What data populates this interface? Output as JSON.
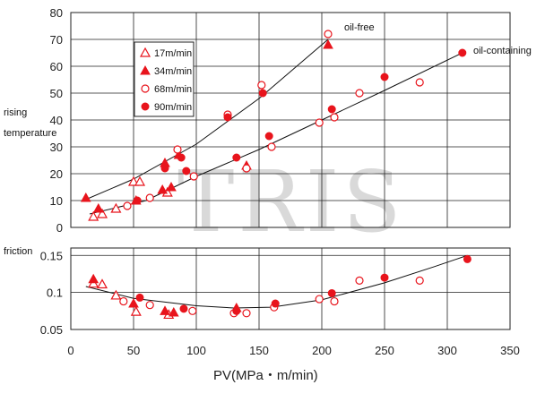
{
  "watermark": "TRIS",
  "x_title": "PV(MPa・m/min)",
  "chart_data": [
    {
      "type": "scatter",
      "ylabel_line1": "rising",
      "ylabel_line2": "temperature",
      "xlim": [
        0,
        350
      ],
      "ylim": [
        0,
        80
      ],
      "yticks": [
        "0",
        "10",
        "20",
        "30",
        "40",
        "50",
        "60",
        "70",
        "80"
      ],
      "grid": true,
      "legend_placement": "top-left",
      "curve_labels": [
        {
          "text": "oil-free"
        },
        {
          "text": "oil-containing"
        }
      ],
      "fit_lines": [
        {
          "label": "oil-free",
          "points": [
            [
              10,
              10
            ],
            [
              50,
              18
            ],
            [
              100,
              31
            ],
            [
              150,
              48
            ],
            [
              205,
              70
            ]
          ]
        },
        {
          "label": "oil-containing",
          "points": [
            [
              15,
              5
            ],
            [
              60,
              10
            ],
            [
              100,
              19
            ],
            [
              150,
              29
            ],
            [
              200,
              40
            ],
            [
              250,
              51
            ],
            [
              312,
              65
            ]
          ]
        }
      ],
      "series": [
        {
          "name": "17m/min",
          "marker": "triangle-open",
          "points": [
            [
              18,
              4
            ],
            [
              25,
              5
            ],
            [
              36,
              7
            ],
            [
              50,
              17
            ],
            [
              55,
              17
            ],
            [
              77,
              13
            ]
          ]
        },
        {
          "name": "34m/min",
          "marker": "triangle-filled",
          "points": [
            [
              12,
              11
            ],
            [
              22,
              7
            ],
            [
              52,
              10
            ],
            [
              73,
              14
            ],
            [
              80,
              15
            ],
            [
              75,
              24
            ],
            [
              86,
              27
            ],
            [
              140,
              23
            ],
            [
              205,
              68
            ]
          ]
        },
        {
          "name": "68m/min",
          "marker": "circle-open",
          "points": [
            [
              45,
              8
            ],
            [
              63,
              11
            ],
            [
              85,
              29
            ],
            [
              98,
              19
            ],
            [
              125,
              42
            ],
            [
              140,
              22
            ],
            [
              152,
              53
            ],
            [
              160,
              30
            ],
            [
              198,
              39
            ],
            [
              205,
              72
            ],
            [
              210,
              41
            ],
            [
              230,
              50
            ],
            [
              278,
              54
            ]
          ]
        },
        {
          "name": "90m/min",
          "marker": "circle-filled",
          "points": [
            [
              53,
              10
            ],
            [
              75,
              22
            ],
            [
              88,
              26
            ],
            [
              92,
              21
            ],
            [
              125,
              41
            ],
            [
              132,
              26
            ],
            [
              153,
              50
            ],
            [
              158,
              34
            ],
            [
              208,
              44
            ],
            [
              250,
              56
            ],
            [
              312,
              65
            ]
          ]
        }
      ]
    },
    {
      "type": "scatter",
      "ylabel": "friction",
      "xlim": [
        0,
        350
      ],
      "ylim": [
        0.05,
        0.16
      ],
      "yticks": [
        "0.05",
        "0.1",
        "0.15"
      ],
      "xticks": [
        "0",
        "50",
        "100",
        "150",
        "200",
        "250",
        "300",
        "350"
      ],
      "grid": true,
      "fit_lines": [
        {
          "label": "friction",
          "points": [
            [
              12,
              0.108
            ],
            [
              50,
              0.092
            ],
            [
              100,
              0.082
            ],
            [
              130,
              0.079
            ],
            [
              160,
              0.08
            ],
            [
              200,
              0.09
            ],
            [
              250,
              0.113
            ],
            [
              290,
              0.135
            ],
            [
              316,
              0.15
            ]
          ]
        }
      ],
      "series": [
        {
          "name": "17m/min",
          "marker": "triangle-open",
          "points": [
            [
              18,
              0.112
            ],
            [
              25,
              0.111
            ],
            [
              36,
              0.096
            ],
            [
              52,
              0.074
            ],
            [
              78,
              0.07
            ]
          ]
        },
        {
          "name": "34m/min",
          "marker": "triangle-filled",
          "points": [
            [
              18,
              0.118
            ],
            [
              50,
              0.085
            ],
            [
              75,
              0.075
            ],
            [
              82,
              0.073
            ],
            [
              132,
              0.079
            ]
          ]
        },
        {
          "name": "68m/min",
          "marker": "circle-open",
          "points": [
            [
              42,
              0.088
            ],
            [
              63,
              0.083
            ],
            [
              97,
              0.075
            ],
            [
              130,
              0.072
            ],
            [
              140,
              0.072
            ],
            [
              162,
              0.08
            ],
            [
              198,
              0.091
            ],
            [
              210,
              0.088
            ],
            [
              230,
              0.116
            ],
            [
              278,
              0.116
            ]
          ]
        },
        {
          "name": "90m/min",
          "marker": "circle-filled",
          "points": [
            [
              55,
              0.093
            ],
            [
              90,
              0.078
            ],
            [
              132,
              0.075
            ],
            [
              163,
              0.085
            ],
            [
              208,
              0.099
            ],
            [
              250,
              0.12
            ],
            [
              316,
              0.145
            ]
          ]
        }
      ]
    }
  ]
}
